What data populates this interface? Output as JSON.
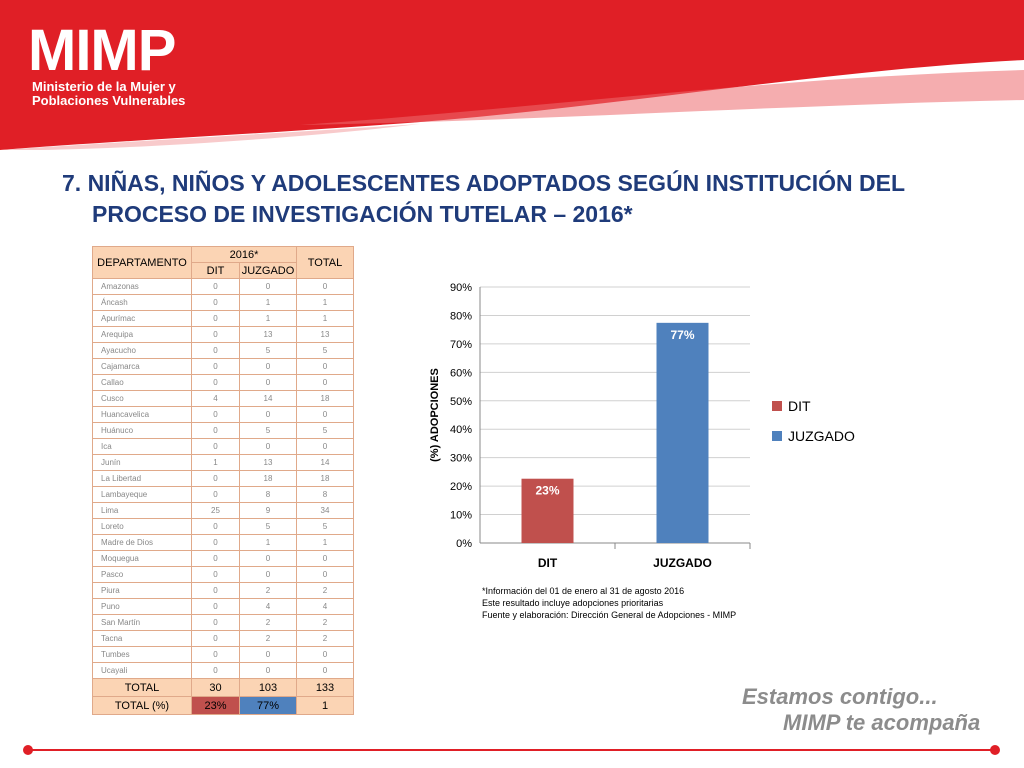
{
  "brand": {
    "logo": "MIMP",
    "line1": "Ministerio de la Mujer y",
    "line2": "Poblaciones Vulnerables",
    "color": "#e01f26"
  },
  "title": {
    "line1": "7. NIÑAS, NIÑOS Y ADOLESCENTES ADOPTADOS SEGÚN INSTITUCIÓN DEL",
    "line2": "PROCESO DE INVESTIGACIÓN TUTELAR – 2016*"
  },
  "table": {
    "header_dept": "DEPARTAMENTO",
    "header_year": "2016*",
    "header_dit": "DIT",
    "header_juz": "JUZGADO",
    "header_total": "TOTAL",
    "rows": [
      {
        "dept": "Amazonas",
        "dit": "0",
        "juz": "0",
        "total": "0"
      },
      {
        "dept": "Áncash",
        "dit": "0",
        "juz": "1",
        "total": "1"
      },
      {
        "dept": "Apurímac",
        "dit": "0",
        "juz": "1",
        "total": "1"
      },
      {
        "dept": "Arequipa",
        "dit": "0",
        "juz": "13",
        "total": "13"
      },
      {
        "dept": "Ayacucho",
        "dit": "0",
        "juz": "5",
        "total": "5"
      },
      {
        "dept": "Cajamarca",
        "dit": "0",
        "juz": "0",
        "total": "0"
      },
      {
        "dept": "Callao",
        "dit": "0",
        "juz": "0",
        "total": "0"
      },
      {
        "dept": "Cusco",
        "dit": "4",
        "juz": "14",
        "total": "18"
      },
      {
        "dept": "Huancavelica",
        "dit": "0",
        "juz": "0",
        "total": "0"
      },
      {
        "dept": "Huánuco",
        "dit": "0",
        "juz": "5",
        "total": "5"
      },
      {
        "dept": "Ica",
        "dit": "0",
        "juz": "0",
        "total": "0"
      },
      {
        "dept": "Junín",
        "dit": "1",
        "juz": "13",
        "total": "14"
      },
      {
        "dept": "La Libertad",
        "dit": "0",
        "juz": "18",
        "total": "18"
      },
      {
        "dept": "Lambayeque",
        "dit": "0",
        "juz": "8",
        "total": "8"
      },
      {
        "dept": "Lima",
        "dit": "25",
        "juz": "9",
        "total": "34"
      },
      {
        "dept": "Loreto",
        "dit": "0",
        "juz": "5",
        "total": "5"
      },
      {
        "dept": "Madre de Dios",
        "dit": "0",
        "juz": "1",
        "total": "1"
      },
      {
        "dept": "Moquegua",
        "dit": "0",
        "juz": "0",
        "total": "0"
      },
      {
        "dept": "Pasco",
        "dit": "0",
        "juz": "0",
        "total": "0"
      },
      {
        "dept": "Piura",
        "dit": "0",
        "juz": "2",
        "total": "2"
      },
      {
        "dept": "Puno",
        "dit": "0",
        "juz": "4",
        "total": "4"
      },
      {
        "dept": "San Martín",
        "dit": "0",
        "juz": "2",
        "total": "2"
      },
      {
        "dept": "Tacna",
        "dit": "0",
        "juz": "2",
        "total": "2"
      },
      {
        "dept": "Tumbes",
        "dit": "0",
        "juz": "0",
        "total": "0"
      },
      {
        "dept": "Ucayali",
        "dit": "0",
        "juz": "0",
        "total": "0"
      }
    ],
    "total_row": {
      "label": "TOTAL",
      "dit": "30",
      "juz": "103",
      "total": "133"
    },
    "pct_row": {
      "label": "TOTAL (%)",
      "dit": "23%",
      "juz": "77%",
      "total": "1"
    }
  },
  "chart_data": {
    "type": "bar",
    "categories": [
      "DIT",
      "JUZGADO"
    ],
    "values": [
      22.6,
      77.4
    ],
    "data_labels": [
      "23%",
      "77%"
    ],
    "colors": [
      "#c0504d",
      "#4f81bd"
    ],
    "ylabel": "(%) ADOPCIONES",
    "ylim": [
      0,
      90
    ],
    "yticks": [
      "0%",
      "10%",
      "20%",
      "30%",
      "40%",
      "50%",
      "60%",
      "70%",
      "80%",
      "90%"
    ],
    "legend": [
      "DIT",
      "JUZGADO"
    ],
    "legend_position": "right",
    "grid": true
  },
  "notes": {
    "line1": "*Información del  01 de enero al 31 de agosto 2016",
    "line2": "Este resultado incluye adopciones prioritarias",
    "line3": "Fuente y elaboración: Dirección General de Adopciones - MIMP"
  },
  "slogan": {
    "line1": "Estamos contigo...",
    "line2": "MIMP te acompaña"
  }
}
